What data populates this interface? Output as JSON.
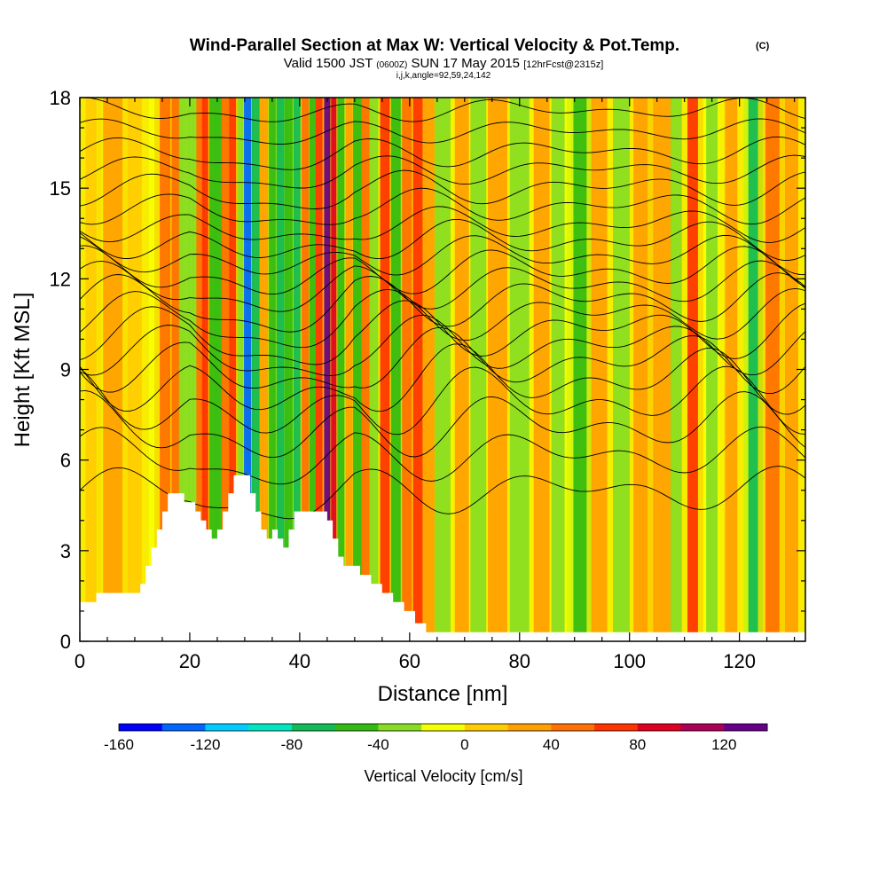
{
  "chart_data": {
    "type": "heatmap",
    "title": "Wind-Parallel Section at Max W: Vertical Velocity & Pot.Temp.",
    "title_mark": "(C)",
    "subtitle_valid": "Valid 1500 JST",
    "subtitle_utc": "(0600Z)",
    "subtitle_date": "SUN 17 May 2015",
    "subtitle_fcst": "[12hrFcst@2315z]",
    "subtitle_indices": "i,j,k,angle=92,59,24,142",
    "xlabel": "Distance [nm]",
    "ylabel": "Height [Kft MSL]",
    "xlim": [
      0,
      132
    ],
    "ylim": [
      0,
      18
    ],
    "xticks": [
      0,
      20,
      40,
      60,
      80,
      100,
      120
    ],
    "yticks": [
      0,
      3,
      6,
      9,
      12,
      15,
      18
    ],
    "colorbar": {
      "label": "Vertical Velocity [cm/s]",
      "range": [
        -160,
        140
      ],
      "tick_values": [
        -160,
        -120,
        -80,
        -40,
        0,
        40,
        80,
        120
      ],
      "tick_labels": [
        "-160",
        "-120",
        "-80",
        "-40",
        "0",
        "40",
        "80",
        "120"
      ],
      "colors": [
        "#0000ff",
        "#0066ff",
        "#00ccff",
        "#00e6c0",
        "#11bb55",
        "#33bb11",
        "#88dd22",
        "#f5ff00",
        "#ffcc00",
        "#ffa000",
        "#ff7000",
        "#ff3300",
        "#dd0022",
        "#aa0055",
        "#660088"
      ]
    },
    "terrain_kft": [
      [
        0,
        1.3
      ],
      [
        3,
        1.3
      ],
      [
        3,
        1.6
      ],
      [
        11,
        1.6
      ],
      [
        11,
        1.9
      ],
      [
        12,
        1.9
      ],
      [
        12,
        2.5
      ],
      [
        13,
        2.5
      ],
      [
        13,
        3.1
      ],
      [
        14,
        3.1
      ],
      [
        14,
        3.7
      ],
      [
        15,
        3.7
      ],
      [
        15,
        4.3
      ],
      [
        16,
        4.3
      ],
      [
        16,
        4.9
      ],
      [
        19,
        4.9
      ],
      [
        19,
        4.6
      ],
      [
        21,
        4.6
      ],
      [
        21,
        4.3
      ],
      [
        22,
        4.3
      ],
      [
        22,
        4.0
      ],
      [
        23,
        4.0
      ],
      [
        23,
        3.7
      ],
      [
        24,
        3.7
      ],
      [
        24,
        3.4
      ],
      [
        25,
        3.4
      ],
      [
        25,
        3.7
      ],
      [
        26,
        3.7
      ],
      [
        26,
        4.3
      ],
      [
        27,
        4.3
      ],
      [
        27,
        4.9
      ],
      [
        28,
        4.9
      ],
      [
        28,
        5.5
      ],
      [
        31,
        5.5
      ],
      [
        31,
        4.9
      ],
      [
        32,
        4.9
      ],
      [
        32,
        4.3
      ],
      [
        33,
        4.3
      ],
      [
        33,
        3.7
      ],
      [
        34,
        3.7
      ],
      [
        34,
        3.4
      ],
      [
        35,
        3.4
      ],
      [
        35,
        3.7
      ],
      [
        36,
        3.7
      ],
      [
        36,
        3.4
      ],
      [
        37,
        3.4
      ],
      [
        37,
        3.1
      ],
      [
        38,
        3.1
      ],
      [
        38,
        3.7
      ],
      [
        39,
        3.7
      ],
      [
        39,
        4.3
      ],
      [
        45,
        4.3
      ],
      [
        45,
        4.0
      ],
      [
        46,
        4.0
      ],
      [
        46,
        3.4
      ],
      [
        47,
        3.4
      ],
      [
        47,
        2.8
      ],
      [
        48,
        2.8
      ],
      [
        48,
        2.5
      ],
      [
        51,
        2.5
      ],
      [
        51,
        2.2
      ],
      [
        53,
        2.2
      ],
      [
        53,
        1.9
      ],
      [
        55,
        1.9
      ],
      [
        55,
        1.6
      ],
      [
        57,
        1.6
      ],
      [
        57,
        1.3
      ],
      [
        59,
        1.3
      ],
      [
        59,
        1.0
      ],
      [
        61,
        1.0
      ],
      [
        61,
        0.6
      ],
      [
        63,
        0.6
      ],
      [
        63,
        0.3
      ],
      [
        132,
        0.3
      ]
    ],
    "vertical_velocity_bands": [
      {
        "x": 2,
        "w": 1.2,
        "v": 8
      },
      {
        "x": 6,
        "w": 2.2,
        "v": 22
      },
      {
        "x": 10,
        "w": 1.6,
        "v": 18
      },
      {
        "x": 15.5,
        "w": 1.2,
        "v": 52
      },
      {
        "x": 17.5,
        "w": 1.0,
        "v": 48
      },
      {
        "x": 19,
        "w": 1.2,
        "v": -38
      },
      {
        "x": 20.5,
        "w": 0.9,
        "v": -22
      },
      {
        "x": 22,
        "w": 1.0,
        "v": 42
      },
      {
        "x": 22.8,
        "w": 0.7,
        "v": 72
      },
      {
        "x": 24.2,
        "w": 0.8,
        "v": -58
      },
      {
        "x": 25.3,
        "w": 0.7,
        "v": -42
      },
      {
        "x": 26.5,
        "w": 0.9,
        "v": 52
      },
      {
        "x": 27.8,
        "w": 0.8,
        "v": 68
      },
      {
        "x": 29.2,
        "w": 0.7,
        "v": -28
      },
      {
        "x": 30.5,
        "w": 0.8,
        "v": -128
      },
      {
        "x": 32,
        "w": 0.9,
        "v": -72
      },
      {
        "x": 33.5,
        "w": 0.9,
        "v": 32
      },
      {
        "x": 35,
        "w": 0.8,
        "v": -55
      },
      {
        "x": 36.5,
        "w": 0.9,
        "v": -80
      },
      {
        "x": 38,
        "w": 0.9,
        "v": -48
      },
      {
        "x": 39.5,
        "w": 0.8,
        "v": -62
      },
      {
        "x": 41,
        "w": 0.8,
        "v": 58
      },
      {
        "x": 42.3,
        "w": 0.7,
        "v": -45
      },
      {
        "x": 43.5,
        "w": 0.8,
        "v": 62
      },
      {
        "x": 45,
        "w": 0.7,
        "v": 122
      },
      {
        "x": 46.2,
        "w": 0.6,
        "v": 98
      },
      {
        "x": 47.5,
        "w": 0.8,
        "v": -42
      },
      {
        "x": 49,
        "w": 0.8,
        "v": 28
      },
      {
        "x": 50.5,
        "w": 1.0,
        "v": -48
      },
      {
        "x": 52,
        "w": 0.9,
        "v": 42
      },
      {
        "x": 53.5,
        "w": 1.0,
        "v": -32
      },
      {
        "x": 55.5,
        "w": 1.1,
        "v": 62
      },
      {
        "x": 57.5,
        "w": 1.1,
        "v": -42
      },
      {
        "x": 59.5,
        "w": 1.1,
        "v": 45
      },
      {
        "x": 61.5,
        "w": 1.1,
        "v": 68
      },
      {
        "x": 63.5,
        "w": 1.3,
        "v": 32
      },
      {
        "x": 66,
        "w": 1.8,
        "v": -22
      },
      {
        "x": 69.5,
        "w": 1.6,
        "v": 22
      },
      {
        "x": 72.5,
        "w": 1.8,
        "v": -32
      },
      {
        "x": 76,
        "w": 2.2,
        "v": 30
      },
      {
        "x": 80,
        "w": 2.2,
        "v": -24
      },
      {
        "x": 84,
        "w": 1.8,
        "v": 22
      },
      {
        "x": 87,
        "w": 1.5,
        "v": -22
      },
      {
        "x": 91,
        "w": 1.5,
        "v": -52
      },
      {
        "x": 94.5,
        "w": 1.8,
        "v": 32
      },
      {
        "x": 98.5,
        "w": 1.9,
        "v": -26
      },
      {
        "x": 102,
        "w": 1.6,
        "v": 38
      },
      {
        "x": 106,
        "w": 2.1,
        "v": 28
      },
      {
        "x": 108.5,
        "w": 1.3,
        "v": -24
      },
      {
        "x": 111.5,
        "w": 1.2,
        "v": 72
      },
      {
        "x": 115,
        "w": 1.3,
        "v": -32
      },
      {
        "x": 118.5,
        "w": 1.4,
        "v": 28
      },
      {
        "x": 122.5,
        "w": 1.1,
        "v": -62
      },
      {
        "x": 126,
        "w": 1.6,
        "v": 42
      },
      {
        "x": 129.5,
        "w": 1.5,
        "v": 26
      }
    ],
    "theta_contours": [
      {
        "base": 5.0,
        "amp": 0.8
      },
      {
        "base": 6.2,
        "amp": 0.9
      },
      {
        "base": 7.2,
        "amp": 1.1
      },
      {
        "base": 8.0,
        "amp": 1.2
      },
      {
        "base": 8.7,
        "amp": 1.2
      },
      {
        "base": 9.3,
        "amp": 1.1
      },
      {
        "base": 9.8,
        "amp": 1.0
      },
      {
        "base": 10.3,
        "amp": 1.0
      },
      {
        "base": 10.8,
        "amp": 0.9
      },
      {
        "base": 11.3,
        "amp": 0.9
      },
      {
        "base": 11.8,
        "amp": 0.8
      },
      {
        "base": 12.3,
        "amp": 0.8
      },
      {
        "base": 12.8,
        "amp": 0.7
      },
      {
        "base": 13.3,
        "amp": 0.7
      },
      {
        "base": 13.8,
        "amp": 0.6
      },
      {
        "base": 14.4,
        "amp": 0.6
      },
      {
        "base": 15.0,
        "amp": 0.6
      },
      {
        "base": 15.6,
        "amp": 0.5
      },
      {
        "base": 16.2,
        "amp": 0.5
      },
      {
        "base": 16.9,
        "amp": 0.4
      },
      {
        "base": 17.6,
        "amp": 0.4
      }
    ]
  }
}
